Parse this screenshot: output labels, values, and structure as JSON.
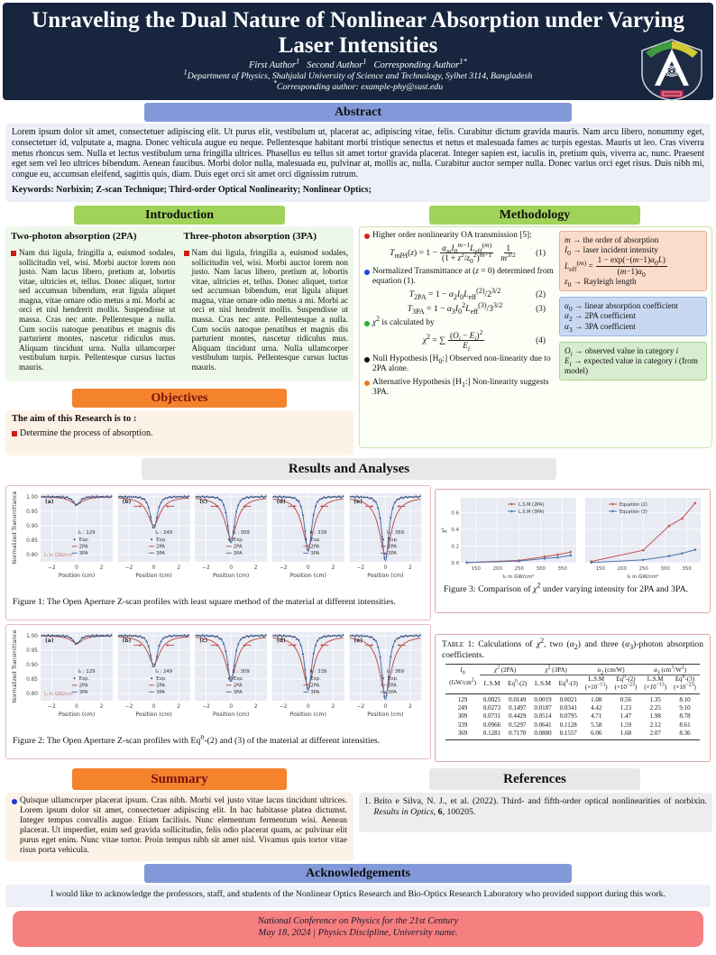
{
  "header": {
    "title": "Unraveling the Dual Nature of Nonlinear Absorption under Varying Laser Intensities",
    "authors_html": "First Author<sup>1</sup> &nbsp; Second Author<sup>1</sup> &nbsp; Corresponding Author<sup>1*</sup>",
    "affiliation_html": "<sup>1</sup>Department of Physics, Shahjalal University of Science and Technology, Sylhet 3114, Bangladesh",
    "corresponding_html": "<sup>*</sup>Corresponding author: example-phy@sust.edu"
  },
  "abstract": {
    "heading": "Abstract",
    "text": "Lorem ipsum dolor sit amet, consectetuer adipiscing elit. Ut purus elit, vestibulum ut, placerat ac, adipiscing vitae, felis. Curabitur dictum gravida mauris. Nam arcu libero, nonummy eget, consectetuer id, vulputate a, magna. Donec vehicula augue eu neque. Pellentesque habitant morbi tristique senectus et netus et malesuada fames ac turpis egestas. Mauris ut leo. Cras viverra metus rhoncus sem. Nulla et lectus vestibulum urna fringilla ultrices. Phasellus eu tellus sit amet tortor gravida placerat. Integer sapien est, iaculis in, pretium quis, viverra ac, nunc. Praesent eget sem vel leo ultrices bibendum. Aenean faucibus. Morbi dolor nulla, malesuada eu, pulvinar at, mollis ac, nulla. Curabitur auctor semper nulla. Donec varius orci eget risus. Duis nibh mi, congue eu, accumsan eleifend, sagittis quis, diam. Duis eget orci sit amet orci dignissim rutrum.",
    "keywords": "Keywords: Norbixin; Z-scan Technique; Third-order Optical Nonlinearity; Nonlinear Optics;"
  },
  "introduction": {
    "heading": "Introduction",
    "columns": [
      {
        "title": "Two-photon absorption (2PA)",
        "body": "Nam dui ligula, fringilla a, euismod sodales, sollicitudin vel, wisi. Morbi auctor lorem non justo. Nam lacus libero, pretium at, lobortis vitae, ultricies et, tellus. Donec aliquet, tortor sed accumsan bibendum, erat ligula aliquet magna, vitae ornare odio metus a mi. Morbi ac orci et nisl hendrerit mollis. Suspendisse ut massa. Cras nec ante. Pellentesque a nulla. Cum sociis natoque penatibus et magnis dis parturient montes, nascetur ridiculus mus. Aliquam tincidunt urna. Nulla ullamcorper vestibulum turpis. Pellentesque cursus luctus mauris."
      },
      {
        "title": "Three-photon absorption (3PA)",
        "body": "Nam dui ligula, fringilla a, euismod sodales, sollicitudin vel, wisi. Morbi auctor lorem non justo. Nam lacus libero, pretium at, lobortis vitae, ultricies et, tellus. Donec aliquet, tortor sed accumsan bibendum, erat ligula aliquet magna, vitae ornare odio metus a mi. Morbi ac orci et nisl hendrerit mollis. Suspendisse ut massa. Cras nec ante. Pellentesque a nulla. Cum sociis natoque penatibus et magnis dis parturient montes, nascetur ridiculus mus. Aliquam tincidunt urna. Nulla ullamcorper vestibulum turpis. Pellentesque cursus luctus mauris."
      }
    ]
  },
  "methodology": {
    "heading": "Methodology",
    "bullets": [
      {
        "html": "Higher order nonlinearity OA transmission [5]:",
        "dot": "background:#e01e1e"
      },
      {
        "html": "Normalized Transmittance at (<i>z</i> = 0) determined from equation (1).",
        "dot": "background:#2442e8"
      },
      {
        "html": "<i>χ</i><sup>2</sup> is calculated by",
        "dot": "background:#2fae2f"
      },
      {
        "html": "Null Hypothesis [H<sub>0</sub>:] Observed non-linearity due to 2PA alone.",
        "dot": "background:#111111"
      },
      {
        "html": "Alternative Hypothesis [H<sub>1</sub>:] Non-linearity suggests 3PA.",
        "dot": "background:#f07820"
      }
    ],
    "eq1": {
      "lhs": "<i>T<sub>mPA</sub></i>(<i>z</i>) = 1 −",
      "num": "<i>α<sub>m</sub></i><i>I</i><sub>0</sub><sup><i>m</i>−1</sup><i>L</i><sub>eff</sub><sup>(<i>m</i>)</sup>",
      "den": "(1 + <i>z</i><sup>2</sup>/<i>z</i><sub>0</sub><sup>2</sup>)<sup><i>m</i>−1</sup>",
      "num2": "1",
      "den2": "<i>m</i><sup>3/2</sup>",
      "no": "(1)"
    },
    "eq2": {
      "html": "<i>T</i><sub>2PA</sub> = 1 − <i>α</i><sub>2</sub><i>I</i><sub>0</sub><i>L</i><sub>eff</sub><sup>(2)</sup>/2<sup>3/2</sup>",
      "no": "(2)"
    },
    "eq3": {
      "html": "<i>T</i><sub>3PA</sub> = 1 − <i>α</i><sub>3</sub><i>I</i><sub>0</sub><sup>2</sup><i>L</i><sub>eff</sub><sup>(3)</sup>/3<sup>3/2</sup>",
      "no": "(3)"
    },
    "eq4": {
      "lhs": "<i>χ</i><sup>2</sup> = ∑",
      "num": "(<i>O<sub>i</sub></i> − <i>E<sub>i</sub></i>)<sup>2</sup>",
      "den": "<i>E<sub>i</sub></i>",
      "no": "(4)"
    },
    "box_pink": {
      "l1": "<i>m</i> → the order of absorption",
      "l2": "<i>I</i><sub>0</sub> → laser incident intensity",
      "frac_lhs": "<i>L</i><sub>eff</sub><sup>(<i>m</i>)</sup> =",
      "frac_num": "1 − exp(−(<i>m</i>−1)<i>α</i><sub>0</sub><i>L</i>)",
      "frac_den": "(<i>m</i>−1)<i>α</i><sub>0</sub>",
      "l4": "<i>z</i><sub>0</sub> → Rayleigh length"
    },
    "box_blue": {
      "l1": "<i>α</i><sub>0</sub> → linear absorption coefficient",
      "l2": "<i>α</i><sub>2</sub> → 2PA coefficient",
      "l3": "<i>α</i><sub>3</sub> → 3PA coefficient"
    },
    "box_green": {
      "l1": "<i>O<sub>i</sub></i> → observed value in category <i>i</i>",
      "l2": "<i>E<sub>i</sub></i> → expected value in category <i>i</i> (from model)"
    }
  },
  "objectives": {
    "heading": "Objectives",
    "lead": "The aim of this Research is to :",
    "item": "Determine the process of absorption."
  },
  "results": {
    "heading": "Results and Analyses",
    "fig1_caption": "Figure 1: The Open Aperture Z-scan profiles with least square method of the material at different intensities.",
    "fig2_caption_html": "Figure 2: The Open Aperture Z-scan profiles with Eq<sup>n</sup>-(2) and (3) of the material at different intensities.",
    "fig3_caption_html": "Figure 3: Comparison of <i>χ</i><sup>2</sup> under varying intensity for 2PA and 3PA.",
    "table": {
      "caption_html": "<span class='tl'>Table 1:</span> Calculations of <i>χ</i><sup>2</sup>, two (<i>α</i><sub>2</sub>) and three (<i>α</i><sub>3</sub>)-photon absorption coefficients.",
      "col0_top": "<i>I</i><sub>0</sub>",
      "col0_bot": "(GW/cm<sup>2</sup>)",
      "groups": [
        {
          "title": "<i>χ</i><sup>2</sup> (2PA)",
          "subs": [
            "L.S.M",
            "Eq<sup>n</sup>-(2)"
          ]
        },
        {
          "title": "<i>χ</i><sup>2</sup> (3PA)",
          "subs": [
            "L.S.M",
            "Eq<sup>n</sup>-(3)"
          ]
        },
        {
          "title": "<i>α</i><sub>2</sub> (cm/W)",
          "subs": [
            "L.S.M<br>(×10<sup>−13</sup>)",
            "Eq<sup>n</sup>-(2)<br>(×10<sup>−23</sup>)"
          ]
        },
        {
          "title": "<i>α</i><sub>3</sub> (cm<sup>3</sup>/W<sup>2</sup>)",
          "subs": [
            "L.S.M<br>(×10<sup>−13</sup>)",
            "Eq<sup>n</sup>-(3)<br>(×10<sup>−23</sup>)"
          ]
        }
      ],
      "rows": [
        [
          "129",
          "0.0025",
          "0.0149",
          "0.0019",
          "0.0021",
          "1.08",
          "0.56",
          "1.35",
          "8.10"
        ],
        [
          "249",
          "0.0273",
          "0.1497",
          "0.0187",
          "0.0341",
          "4.42",
          "1.23",
          "2.25",
          "9.10"
        ],
        [
          "309",
          "0.0731",
          "0.4429",
          "0.0514",
          "0.0795",
          "4.71",
          "1.47",
          "1.98",
          "8.78"
        ],
        [
          "339",
          "0.0966",
          "0.5297",
          "0.0641",
          "0.1128",
          "5.58",
          "1.59",
          "2.12",
          "8.61"
        ],
        [
          "369",
          "0.1281",
          "0.7170",
          "0.0880",
          "0.1557",
          "6.06",
          "1.68",
          "2.07",
          "8.36"
        ]
      ]
    }
  },
  "summary": {
    "heading": "Summary",
    "text": "Quisque ullamcorper placerat ipsum. Cras nibh. Morbi vel justo vitae lacus tincidunt ultrices. Lorem ipsum dolor sit amet, consectetuer adipiscing elit. In hac habitasse platea dictumst. Integer tempus convallis augue. Etiam facilisis. Nunc elementum fermentum wisi. Aenean placerat. Ut imperdiet, enim sed gravida sollicitudin, felis odio placerat quam, ac pulvinar elit purus eget enim. Nunc vitae tortor. Proin tempus nibh sit amet nisl. Vivamus quis tortor vitae risus porta vehicula."
  },
  "references": {
    "heading": "References",
    "item_no": "1.",
    "item_html": "Brito e Silva, N. J., et al. (2022). Third- and fifth-order optical nonlinearities of norbixin. <i>Results in Optics</i>, <b>6</b>, 100205."
  },
  "acknowledgements": {
    "heading": "Acknowledgements",
    "text": "I would like to acknowledge the professors, staff, and students of the Nonlinear Optics Research and Bio-Optics Research Laboratory who provided support during this work."
  },
  "footer": {
    "line1": "National Conference on Physics for the 21st Century",
    "line2": "May 18, 2024  | Physics Discipline, University name."
  },
  "chart_colors": {
    "exp": "#3a4a68",
    "pa2": "#c0504d",
    "pa3": "#4c72b0",
    "plot_bg": "#e8ebf3",
    "grid": "#ffffff",
    "arrow": "#c0504d",
    "note": "#c9706e"
  },
  "chart_data": [
    {
      "id": "figure1-zscan",
      "type": "line",
      "title": "Open Aperture Z-scan profiles (least square method)",
      "xlabel": "Position (cm)",
      "ylabel": "Normalized Transmittance",
      "xlim": [
        -2.9,
        2.9
      ],
      "ylim": [
        0.775,
        1.012
      ],
      "xticks": [
        -2,
        0,
        2
      ],
      "yticks": [
        1.0,
        0.95,
        0.9,
        0.85,
        0.8
      ],
      "note": "I₀ in GW/cm²",
      "legend": [
        "Exp.",
        "2PA",
        "3PA"
      ],
      "panels": [
        {
          "label": "(a)",
          "I0": 129,
          "dip": 0.971,
          "arrows": false
        },
        {
          "label": "(b)",
          "I0": 249,
          "dip": 0.89,
          "arrows": true
        },
        {
          "label": "(c)",
          "I0": 309,
          "dip": 0.84,
          "arrows": true
        },
        {
          "label": "(d)",
          "I0": 339,
          "dip": 0.81,
          "arrows": true
        },
        {
          "label": "(e)",
          "I0": 369,
          "dip": 0.778,
          "arrows": true
        }
      ]
    },
    {
      "id": "figure2-zscan",
      "type": "line",
      "title": "Open Aperture Z-scan profiles (Eqn-(2) and (3))",
      "xlabel": "Position (cm)",
      "ylabel": "Normalized Transmittance",
      "xlim": [
        -2.9,
        2.9
      ],
      "ylim": [
        0.775,
        1.012
      ],
      "xticks": [
        -2,
        0,
        2
      ],
      "yticks": [
        1.0,
        0.95,
        0.9,
        0.85,
        0.8
      ],
      "note": "I₀ in GW/cm²",
      "legend": [
        "Exp.",
        "2PA",
        "3PA"
      ],
      "panels": [
        {
          "label": "(a)",
          "I0": 129,
          "dip": 0.971,
          "arrows": false
        },
        {
          "label": "(b)",
          "I0": 249,
          "dip": 0.89,
          "arrows": true
        },
        {
          "label": "(c)",
          "I0": 309,
          "dip": 0.84,
          "arrows": true
        },
        {
          "label": "(d)",
          "I0": 339,
          "dip": 0.81,
          "arrows": true
        },
        {
          "label": "(e)",
          "I0": 369,
          "dip": 0.778,
          "arrows": true
        }
      ]
    },
    {
      "id": "figure3-chi2",
      "type": "line",
      "xlabel": "I₀ in GW/cm²",
      "ylabel": "χ²",
      "x": [
        129,
        249,
        309,
        339,
        369
      ],
      "xticks": [
        150,
        200,
        250,
        300,
        350
      ],
      "yticks": [
        0.0,
        0.2,
        0.4,
        0.6
      ],
      "xlim": [
        115,
        382
      ],
      "ylim": [
        0,
        0.78
      ],
      "subplots": [
        {
          "series": [
            {
              "name": "L.S.M (2PA)",
              "color": "#c0504d",
              "values": [
                0.0025,
                0.0273,
                0.0731,
                0.0966,
                0.1281
              ]
            },
            {
              "name": "L.S.M (3PA)",
              "color": "#4c72b0",
              "values": [
                0.0019,
                0.0187,
                0.0514,
                0.0641,
                0.088
              ]
            }
          ]
        },
        {
          "series": [
            {
              "name": "Equation (2)",
              "color": "#c0504d",
              "values": [
                0.0149,
                0.1497,
                0.4429,
                0.5297,
                0.717
              ]
            },
            {
              "name": "Equation (3)",
              "color": "#4c72b0",
              "values": [
                0.0021,
                0.0341,
                0.0795,
                0.1128,
                0.1557
              ]
            }
          ]
        }
      ]
    }
  ]
}
